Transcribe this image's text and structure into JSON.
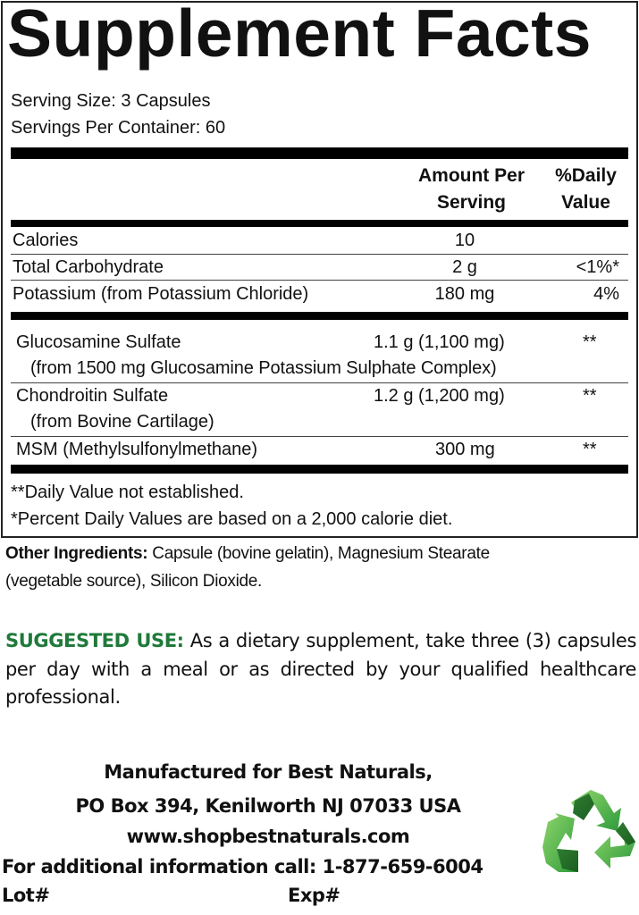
{
  "panel": {
    "title": "Supplement Facts",
    "serving_size": "Serving Size: 3 Capsules",
    "servings_per_container": "Servings Per Container: 60",
    "header": {
      "amount_line1": "Amount Per",
      "amount_line2": "Serving",
      "dv_line1": "%Daily",
      "dv_line2": "Value"
    },
    "nutrients": [
      {
        "name": "Calories",
        "amount": "10",
        "dv": ""
      },
      {
        "name": "Total Carbohydrate",
        "amount": "2 g",
        "dv": "<1%*"
      },
      {
        "name": "Potassium (from Potassium Chloride)",
        "amount": "180 mg",
        "dv": "4%"
      }
    ],
    "ingredients": [
      {
        "name": "Glucosamine Sulfate",
        "amount": "1.1 g (1,100 mg)",
        "dv": "**",
        "source": "(from 1500 mg Glucosamine Potassium Sulphate Complex)"
      },
      {
        "name": "Chondroitin Sulfate",
        "amount": "1.2 g (1,200 mg)",
        "dv": "**",
        "source": "(from Bovine Cartilage)"
      },
      {
        "name": "MSM (Methylsulfonylmethane)",
        "amount": "300 mg",
        "dv": "**"
      }
    ],
    "footnotes": [
      "**Daily Value not established.",
      "*Percent Daily Values are based on a 2,000 calorie diet."
    ]
  },
  "other_ingredients": {
    "label": "Other Ingredients:",
    "line1": " Capsule (bovine gelatin), Magnesium Stearate",
    "line2": "(vegetable source), Silicon Dioxide."
  },
  "suggested_use": {
    "label": "SUGGESTED USE:",
    "text": " As a dietary supplement, take three (3) capsules per day with a meal or as directed by your qualified healthcare professional.",
    "color": "#1f7a3a"
  },
  "manufacturer": {
    "line1": "Manufactured for Best Naturals,",
    "line2": "PO Box 394, Kenilworth NJ 07033 USA",
    "website": "www.shopbestnaturals.com",
    "phone_line": "For additional information call: 1-877-659-6004",
    "lot_label": "Lot#",
    "exp_label": "Exp#"
  },
  "icons": {
    "recycle": "recycle-icon"
  }
}
